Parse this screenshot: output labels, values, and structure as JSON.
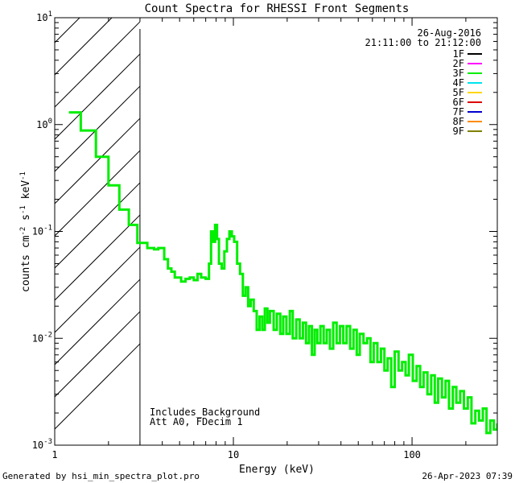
{
  "chart_data": {
    "type": "line",
    "title": "Count Spectra for RHESSI Front Segments",
    "xlabel": "Energy (keV)",
    "ylabel": "counts cm",
    "ylabel_sup1": "-2",
    "ylabel_mid": " s",
    "ylabel_sup2": "-1",
    "ylabel_mid2": " keV",
    "ylabel_sup3": "-1",
    "x_scale": "log",
    "y_scale": "log",
    "xlim": [
      1,
      300
    ],
    "ylim": [
      0.001,
      10
    ],
    "x_ticks": [
      {
        "value": 1,
        "label": "1"
      },
      {
        "value": 10,
        "label": "10"
      },
      {
        "value": 100,
        "label": "100"
      }
    ],
    "y_ticks": [
      {
        "value": 10,
        "base": "10",
        "exp": "1"
      },
      {
        "value": 1,
        "base": "10",
        "exp": "0"
      },
      {
        "value": 0.1,
        "base": "10",
        "exp": "-1"
      },
      {
        "value": 0.01,
        "base": "10",
        "exp": "-2"
      },
      {
        "value": 0.001,
        "base": "10",
        "exp": "-3"
      }
    ],
    "hatched_region_max_energy": 3,
    "date": "26-Aug-2016",
    "time_range": "21:11:00 to 21:12:00",
    "legend": [
      {
        "label": "1F",
        "color": "#000000"
      },
      {
        "label": "2F",
        "color": "#ff00ff"
      },
      {
        "label": "3F",
        "color": "#00ee00"
      },
      {
        "label": "4F",
        "color": "#00e5ee"
      },
      {
        "label": "5F",
        "color": "#ffd700"
      },
      {
        "label": "6F",
        "color": "#dd0000"
      },
      {
        "label": "7F",
        "color": "#0000cc"
      },
      {
        "label": "8F",
        "color": "#ff8c00"
      },
      {
        "label": "9F",
        "color": "#808000"
      }
    ],
    "annotation_line1": "Includes_Background",
    "annotation_line2": "Att A0, FDecim 1",
    "series": [
      {
        "name": "3F",
        "color": "#00ee00",
        "points": [
          [
            1.2,
            1.3
          ],
          [
            1.4,
            0.88
          ],
          [
            1.6,
            0.88
          ],
          [
            1.7,
            0.5
          ],
          [
            1.9,
            0.5
          ],
          [
            2.0,
            0.27
          ],
          [
            2.2,
            0.27
          ],
          [
            2.3,
            0.16
          ],
          [
            2.5,
            0.16
          ],
          [
            2.6,
            0.115
          ],
          [
            2.85,
            0.115
          ],
          [
            2.9,
            0.078
          ],
          [
            3.1,
            0.078
          ],
          [
            3.3,
            0.07
          ],
          [
            3.6,
            0.068
          ],
          [
            3.8,
            0.07
          ],
          [
            4.0,
            0.07
          ],
          [
            4.1,
            0.055
          ],
          [
            4.3,
            0.045
          ],
          [
            4.5,
            0.042
          ],
          [
            4.7,
            0.037
          ],
          [
            4.9,
            0.037
          ],
          [
            5.1,
            0.034
          ],
          [
            5.4,
            0.036
          ],
          [
            5.7,
            0.037
          ],
          [
            6.0,
            0.035
          ],
          [
            6.3,
            0.04
          ],
          [
            6.6,
            0.037
          ],
          [
            7.0,
            0.036
          ],
          [
            7.3,
            0.05
          ],
          [
            7.5,
            0.1
          ],
          [
            7.7,
            0.08
          ],
          [
            7.9,
            0.115
          ],
          [
            8.1,
            0.085
          ],
          [
            8.3,
            0.05
          ],
          [
            8.6,
            0.045
          ],
          [
            8.9,
            0.065
          ],
          [
            9.2,
            0.085
          ],
          [
            9.5,
            0.1
          ],
          [
            9.8,
            0.09
          ],
          [
            10.1,
            0.08
          ],
          [
            10.5,
            0.05
          ],
          [
            10.9,
            0.04
          ],
          [
            11.3,
            0.025
          ],
          [
            11.7,
            0.03
          ],
          [
            12.1,
            0.02
          ],
          [
            12.5,
            0.023
          ],
          [
            13.0,
            0.018
          ],
          [
            13.5,
            0.012
          ],
          [
            14.0,
            0.016
          ],
          [
            14.5,
            0.012
          ],
          [
            15.0,
            0.019
          ],
          [
            15.5,
            0.014
          ],
          [
            16.0,
            0.018
          ],
          [
            16.8,
            0.012
          ],
          [
            17.5,
            0.017
          ],
          [
            18.3,
            0.011
          ],
          [
            19.0,
            0.016
          ],
          [
            19.8,
            0.011
          ],
          [
            20.7,
            0.018
          ],
          [
            21.5,
            0.01
          ],
          [
            22.5,
            0.015
          ],
          [
            23.5,
            0.01
          ],
          [
            24.5,
            0.014
          ],
          [
            25.5,
            0.009
          ],
          [
            26.5,
            0.013
          ],
          [
            27.5,
            0.007
          ],
          [
            28.5,
            0.012
          ],
          [
            29.5,
            0.009
          ],
          [
            30.7,
            0.013
          ],
          [
            32.0,
            0.009
          ],
          [
            33.3,
            0.012
          ],
          [
            34.7,
            0.008
          ],
          [
            36.2,
            0.014
          ],
          [
            37.8,
            0.009
          ],
          [
            39.5,
            0.013
          ],
          [
            41.2,
            0.009
          ],
          [
            43.0,
            0.013
          ],
          [
            45.0,
            0.008
          ],
          [
            47.0,
            0.012
          ],
          [
            49.0,
            0.007
          ],
          [
            51.0,
            0.011
          ],
          [
            53.5,
            0.009
          ],
          [
            56.0,
            0.01
          ],
          [
            58.5,
            0.006
          ],
          [
            61.0,
            0.009
          ],
          [
            64.0,
            0.006
          ],
          [
            67.0,
            0.008
          ],
          [
            70.0,
            0.005
          ],
          [
            73.0,
            0.0065
          ],
          [
            76.5,
            0.0035
          ],
          [
            80.0,
            0.0075
          ],
          [
            84.0,
            0.005
          ],
          [
            88.0,
            0.006
          ],
          [
            92.0,
            0.0045
          ],
          [
            96.0,
            0.007
          ],
          [
            101.0,
            0.004
          ],
          [
            106.0,
            0.0055
          ],
          [
            111.0,
            0.0035
          ],
          [
            116.0,
            0.0048
          ],
          [
            122.0,
            0.003
          ],
          [
            128.0,
            0.0045
          ],
          [
            134.0,
            0.0025
          ],
          [
            140.0,
            0.0042
          ],
          [
            147.0,
            0.0028
          ],
          [
            154.0,
            0.004
          ],
          [
            161.0,
            0.0022
          ],
          [
            169.0,
            0.0035
          ],
          [
            177.0,
            0.0025
          ],
          [
            186.0,
            0.0032
          ],
          [
            195.0,
            0.0022
          ],
          [
            205.0,
            0.0028
          ],
          [
            215.0,
            0.0016
          ],
          [
            226.0,
            0.0021
          ],
          [
            237.0,
            0.0017
          ],
          [
            249.0,
            0.0022
          ],
          [
            261.0,
            0.0013
          ],
          [
            274.0,
            0.0017
          ],
          [
            287.0,
            0.0014
          ],
          [
            300.0,
            0.0016
          ]
        ]
      }
    ]
  },
  "footer": {
    "generated_by": "Generated by hsi_min_spectra_plot.pro",
    "timestamp": "26-Apr-2023 07:39"
  }
}
